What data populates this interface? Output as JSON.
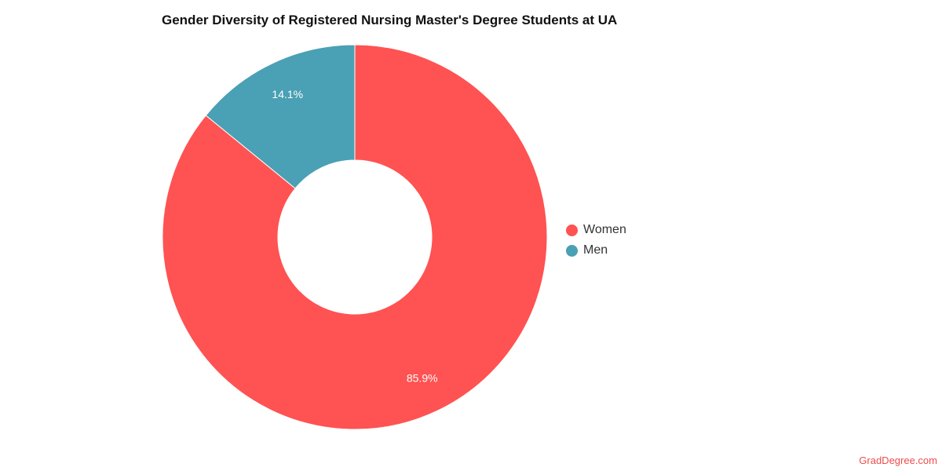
{
  "chart_data": {
    "type": "pie",
    "variant": "donut",
    "title": "Gender Diversity of Registered Nursing Master's Degree Students at UA",
    "categories": [
      "Women",
      "Men"
    ],
    "values": [
      85.9,
      14.1
    ],
    "value_labels": [
      "85.9%",
      "14.1%"
    ],
    "colors": [
      "#ff5252",
      "#4aa0b4"
    ],
    "legend_placement": "right"
  },
  "credit": "GradDegree.com"
}
